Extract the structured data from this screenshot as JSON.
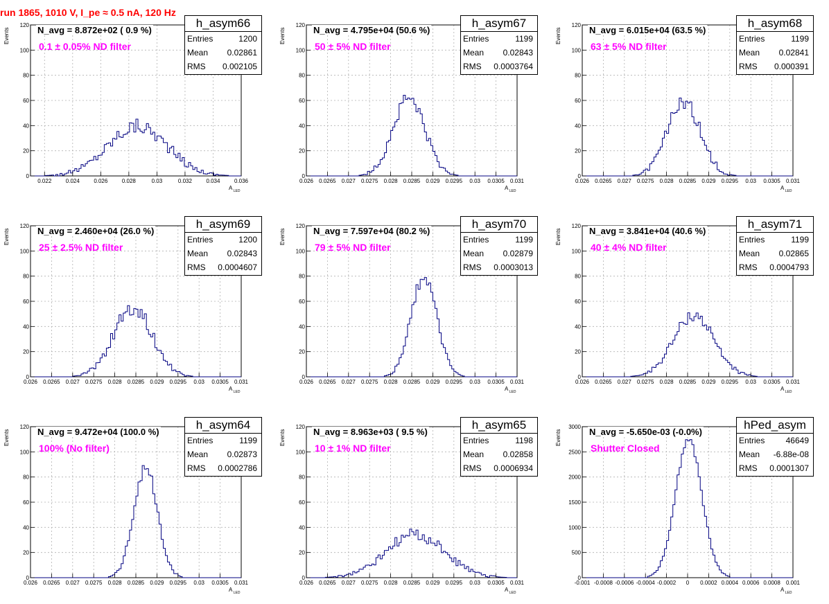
{
  "run_title": "run 1865,  1010 V, I_pe ≈ 0.5 nA, 120 Hz",
  "colors": {
    "histogram": "#000080",
    "title": "#ff0000",
    "filter_text": "#ff00ff",
    "grid": "#cccccc"
  },
  "stat_labels": {
    "entries": "Entries",
    "mean": "Mean",
    "rms": "RMS"
  },
  "chart_data": [
    {
      "type": "histogram",
      "name": "h_asym66",
      "n_avg": "N_avg = 8.872e+02 ( 0.9 %)",
      "filter": "0.1 ± 0.05% ND filter",
      "entries": "1200",
      "mean": "0.02861",
      "rms": "0.002105",
      "xlabel": "A",
      "xlabel_sub": "LED",
      "ylabel": "Events",
      "xlim": [
        0.021,
        0.036
      ],
      "ylim": [
        0,
        120
      ],
      "xticks": [
        0.022,
        0.024,
        0.026,
        0.028,
        0.03,
        0.032,
        0.034,
        0.036
      ],
      "xtick_labels": [
        "0.022",
        "0.024",
        "0.026",
        "0.028",
        "0.03",
        "0.032",
        "0.034",
        "0.036"
      ],
      "yticks": [
        0,
        20,
        40,
        60,
        80,
        100,
        120
      ],
      "ytick_labels": [
        "0",
        "20",
        "40",
        "60",
        "80",
        "100",
        "120"
      ],
      "grid": true,
      "shape": "gauss",
      "mu": 0.02861,
      "sigma": 0.002105,
      "peak": 40,
      "jitter": 6
    },
    {
      "type": "histogram",
      "name": "h_asym67",
      "n_avg": "N_avg = 4.795e+04 (50.6 %)",
      "filter": "50 ± 5% ND filter",
      "entries": "1199",
      "mean": "0.02843",
      "rms": "0.0003764",
      "xlabel": "A",
      "xlabel_sub": "LED",
      "ylabel": "Events",
      "xlim": [
        0.026,
        0.031
      ],
      "ylim": [
        0,
        120
      ],
      "xticks": [
        0.026,
        0.0265,
        0.027,
        0.0275,
        0.028,
        0.0285,
        0.029,
        0.0295,
        0.03,
        0.0305,
        0.031
      ],
      "xtick_labels": [
        "0.026",
        "0.0265",
        "0.027",
        "0.0275",
        "0.028",
        "0.0285",
        "0.029",
        "0.0295",
        "0.03",
        "0.0305",
        "0.031"
      ],
      "yticks": [
        0,
        20,
        40,
        60,
        80,
        100,
        120
      ],
      "ytick_labels": [
        "0",
        "20",
        "40",
        "60",
        "80",
        "100",
        "120"
      ],
      "grid": true,
      "shape": "gauss",
      "mu": 0.02843,
      "sigma": 0.0003764,
      "peak": 62,
      "jitter": 6
    },
    {
      "type": "histogram",
      "name": "h_asym68",
      "n_avg": "N_avg = 6.015e+04 (63.5 %)",
      "filter": "63 ± 5% ND filter",
      "entries": "1199",
      "mean": "0.02841",
      "rms": "0.000391",
      "xlabel": "A",
      "xlabel_sub": "LED",
      "ylabel": "Events",
      "xlim": [
        0.026,
        0.031
      ],
      "ylim": [
        0,
        120
      ],
      "xticks": [
        0.026,
        0.0265,
        0.027,
        0.0275,
        0.028,
        0.0285,
        0.029,
        0.0295,
        0.03,
        0.0305,
        0.031
      ],
      "xtick_labels": [
        "0.026",
        "0.0265",
        "0.027",
        "0.0275",
        "0.028",
        "0.0285",
        "0.029",
        "0.0295",
        "0.03",
        "0.0305",
        "0.031"
      ],
      "yticks": [
        0,
        20,
        40,
        60,
        80,
        100,
        120
      ],
      "ytick_labels": [
        "0",
        "20",
        "40",
        "60",
        "80",
        "100",
        "120"
      ],
      "grid": true,
      "shape": "gauss",
      "mu": 0.02841,
      "sigma": 0.000391,
      "peak": 59,
      "jitter": 6
    },
    {
      "type": "histogram",
      "name": "h_asym69",
      "n_avg": "N_avg = 2.460e+04 (26.0 %)",
      "filter": "25 ± 2.5% ND filter",
      "entries": "1200",
      "mean": "0.02843",
      "rms": "0.0004607",
      "xlabel": "A",
      "xlabel_sub": "LED",
      "ylabel": "Events",
      "xlim": [
        0.026,
        0.031
      ],
      "ylim": [
        0,
        120
      ],
      "xticks": [
        0.026,
        0.0265,
        0.027,
        0.0275,
        0.028,
        0.0285,
        0.029,
        0.0295,
        0.03,
        0.0305,
        0.031
      ],
      "xtick_labels": [
        "0.026",
        "0.0265",
        "0.027",
        "0.0275",
        "0.028",
        "0.0285",
        "0.029",
        "0.0295",
        "0.03",
        "0.0305",
        "0.031"
      ],
      "yticks": [
        0,
        20,
        40,
        60,
        80,
        100,
        120
      ],
      "ytick_labels": [
        "0",
        "20",
        "40",
        "60",
        "80",
        "100",
        "120"
      ],
      "grid": true,
      "shape": "gauss",
      "mu": 0.02843,
      "sigma": 0.0004607,
      "peak": 55,
      "jitter": 6
    },
    {
      "type": "histogram",
      "name": "h_asym70",
      "n_avg": "N_avg = 7.597e+04 (80.2 %)",
      "filter": "79 ± 5% ND filter",
      "entries": "1199",
      "mean": "0.02879",
      "rms": "0.0003013",
      "xlabel": "A",
      "xlabel_sub": "LED",
      "ylabel": "Events",
      "xlim": [
        0.026,
        0.031
      ],
      "ylim": [
        0,
        120
      ],
      "xticks": [
        0.026,
        0.0265,
        0.027,
        0.0275,
        0.028,
        0.0285,
        0.029,
        0.0295,
        0.03,
        0.0305,
        0.031
      ],
      "xtick_labels": [
        "0.026",
        "0.0265",
        "0.027",
        "0.0275",
        "0.028",
        "0.0285",
        "0.029",
        "0.0295",
        "0.03",
        "0.0305",
        "0.031"
      ],
      "yticks": [
        0,
        20,
        40,
        60,
        80,
        100,
        120
      ],
      "ytick_labels": [
        "0",
        "20",
        "40",
        "60",
        "80",
        "100",
        "120"
      ],
      "grid": true,
      "shape": "gauss",
      "mu": 0.02879,
      "sigma": 0.0003013,
      "peak": 80,
      "jitter": 5
    },
    {
      "type": "histogram",
      "name": "h_asym71",
      "n_avg": "N_avg = 3.841e+04 (40.6 %)",
      "filter": "40 ± 4% ND filter",
      "entries": "1199",
      "mean": "0.02865",
      "rms": "0.0004793",
      "xlabel": "A",
      "xlabel_sub": "LED",
      "ylabel": "Events",
      "xlim": [
        0.026,
        0.031
      ],
      "ylim": [
        0,
        120
      ],
      "xticks": [
        0.026,
        0.0265,
        0.027,
        0.0275,
        0.028,
        0.0285,
        0.029,
        0.0295,
        0.03,
        0.0305,
        0.031
      ],
      "xtick_labels": [
        "0.026",
        "0.0265",
        "0.027",
        "0.0275",
        "0.028",
        "0.0285",
        "0.029",
        "0.0295",
        "0.03",
        "0.0305",
        "0.031"
      ],
      "yticks": [
        0,
        20,
        40,
        60,
        80,
        100,
        120
      ],
      "ytick_labels": [
        "0",
        "20",
        "40",
        "60",
        "80",
        "100",
        "120"
      ],
      "grid": true,
      "shape": "gauss",
      "mu": 0.02865,
      "sigma": 0.0004793,
      "peak": 49,
      "jitter": 5
    },
    {
      "type": "histogram",
      "name": "h_asym64",
      "n_avg": "N_avg = 9.472e+04 (100.0 %)",
      "filter": "100% (No filter)",
      "entries": "1199",
      "mean": "0.02873",
      "rms": "0.0002786",
      "xlabel": "A",
      "xlabel_sub": "LED",
      "ylabel": "Events",
      "xlim": [
        0.026,
        0.031
      ],
      "ylim": [
        0,
        120
      ],
      "xticks": [
        0.026,
        0.0265,
        0.027,
        0.0275,
        0.028,
        0.0285,
        0.029,
        0.0295,
        0.03,
        0.0305,
        0.031
      ],
      "xtick_labels": [
        "0.026",
        "0.0265",
        "0.027",
        "0.0275",
        "0.028",
        "0.0285",
        "0.029",
        "0.0295",
        "0.03",
        "0.0305",
        "0.031"
      ],
      "yticks": [
        0,
        20,
        40,
        60,
        80,
        100,
        120
      ],
      "ytick_labels": [
        "0",
        "20",
        "40",
        "60",
        "80",
        "100",
        "120"
      ],
      "grid": true,
      "shape": "gauss",
      "mu": 0.02873,
      "sigma": 0.0002786,
      "peak": 88,
      "jitter": 5
    },
    {
      "type": "histogram",
      "name": "h_asym65",
      "n_avg": "N_avg = 8.963e+03 ( 9.5 %)",
      "filter": "10 ± 1% ND filter",
      "entries": "1198",
      "mean": "0.02858",
      "rms": "0.0006934",
      "xlabel": "A",
      "xlabel_sub": "LED",
      "ylabel": "Events",
      "xlim": [
        0.026,
        0.031
      ],
      "ylim": [
        0,
        120
      ],
      "xticks": [
        0.026,
        0.0265,
        0.027,
        0.0275,
        0.028,
        0.0285,
        0.029,
        0.0295,
        0.03,
        0.0305,
        0.031
      ],
      "xtick_labels": [
        "0.026",
        "0.0265",
        "0.027",
        "0.0275",
        "0.028",
        "0.0285",
        "0.029",
        "0.0295",
        "0.03",
        "0.0305",
        "0.031"
      ],
      "yticks": [
        0,
        20,
        40,
        60,
        80,
        100,
        120
      ],
      "ytick_labels": [
        "0",
        "20",
        "40",
        "60",
        "80",
        "100",
        "120"
      ],
      "grid": true,
      "shape": "gauss",
      "mu": 0.02858,
      "sigma": 0.0006934,
      "peak": 34,
      "jitter": 5
    },
    {
      "type": "histogram",
      "name": "hPed_asym",
      "n_avg": "N_avg = -5.650e-03 (-0.0%)",
      "filter": "Shutter Closed",
      "entries": "46649",
      "mean": "-6.88e-08",
      "rms": "0.0001307",
      "xlabel": "A",
      "xlabel_sub": "LED",
      "ylabel": "Events",
      "xlim": [
        -0.001,
        0.001
      ],
      "ylim": [
        0,
        3000
      ],
      "xticks": [
        -0.001,
        -0.0008,
        -0.0006,
        -0.0004,
        -0.0002,
        0,
        0.0002,
        0.0004,
        0.0006,
        0.0008,
        0.001
      ],
      "xtick_labels": [
        "-0.001",
        "-0.0008",
        "-0.0006",
        "-0.0004",
        "-0.0002",
        "0",
        "0.0002",
        "0.0004",
        "0.0006",
        "0.0008",
        "0.001"
      ],
      "yticks": [
        0,
        500,
        1000,
        1500,
        2000,
        2500,
        3000
      ],
      "ytick_labels": [
        "0",
        "500",
        "1000",
        "1500",
        "2000",
        "2500",
        "3000"
      ],
      "grid": true,
      "shape": "gauss",
      "mu": 1e-05,
      "sigma": 0.000125,
      "peak": 2750,
      "jitter": 60
    }
  ]
}
